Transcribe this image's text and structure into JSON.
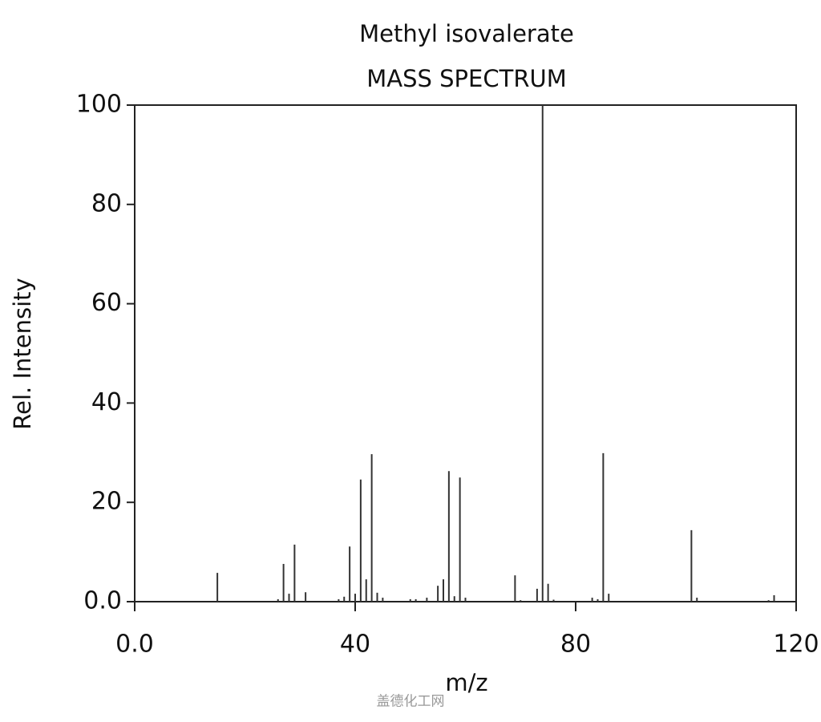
{
  "chart_data": {
    "type": "stem",
    "title": "Methyl isovalerate",
    "subtitle": "MASS SPECTRUM",
    "x_label": "m/z",
    "y_label": "Rel. Intensity",
    "watermark": "盖德化工网",
    "color": "#333333",
    "x": [
      15,
      26,
      27,
      28,
      29,
      31,
      37,
      38,
      39,
      40,
      41,
      42,
      43,
      44,
      45,
      50,
      51,
      53,
      55,
      56,
      57,
      58,
      59,
      60,
      69,
      70,
      73,
      74,
      75,
      76,
      83,
      84,
      85,
      86,
      101,
      102,
      115,
      116
    ],
    "values": [
      5.8,
      0.5,
      7.6,
      1.6,
      11.5,
      1.9,
      0.5,
      1.0,
      11.1,
      1.6,
      24.6,
      4.5,
      29.7,
      1.8,
      0.8,
      0.5,
      0.5,
      0.8,
      3.2,
      4.5,
      26.3,
      1.1,
      25.0,
      0.8,
      5.3,
      0.3,
      2.6,
      100,
      3.6,
      0.4,
      0.8,
      0.5,
      29.9,
      1.6,
      14.4,
      0.8,
      0.3,
      1.3
    ],
    "xlim": [
      0,
      120
    ],
    "xticks": [
      {
        "value": 0,
        "label": "0.0"
      },
      40,
      80,
      120
    ],
    "ylim": [
      0,
      100
    ],
    "yticks": [
      {
        "value": 0,
        "label": "0.0"
      },
      20,
      40,
      60,
      80,
      100
    ]
  }
}
